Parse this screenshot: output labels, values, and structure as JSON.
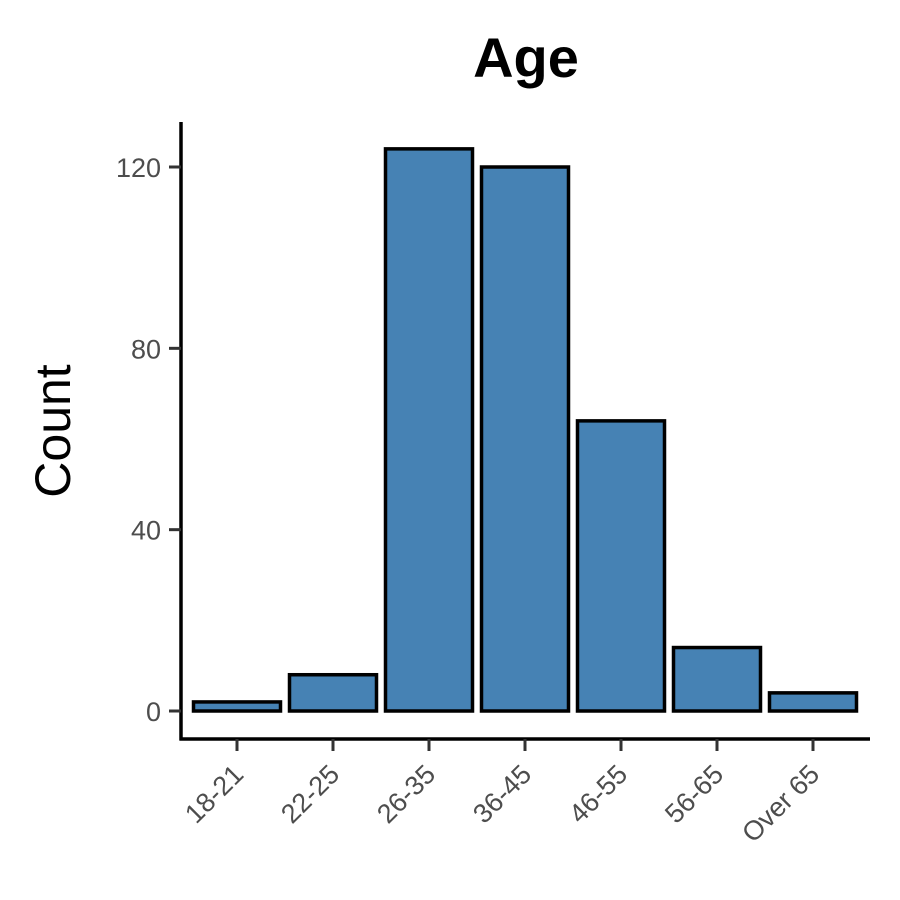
{
  "chart_data": {
    "type": "bar",
    "title": "Age",
    "xlabel": "",
    "ylabel": "Count",
    "categories": [
      "18-21",
      "22-25",
      "26-35",
      "36-45",
      "46-55",
      "56-65",
      "Over 65"
    ],
    "values": [
      2,
      8,
      124,
      120,
      64,
      14,
      4
    ],
    "ylim": [
      -6,
      130
    ],
    "yticks": [
      0,
      40,
      80,
      120
    ],
    "grid": false,
    "legend": "none",
    "bar_fill": "#4682b4",
    "bar_stroke": "#000000",
    "tick_label_color": "#4d4d4d"
  }
}
